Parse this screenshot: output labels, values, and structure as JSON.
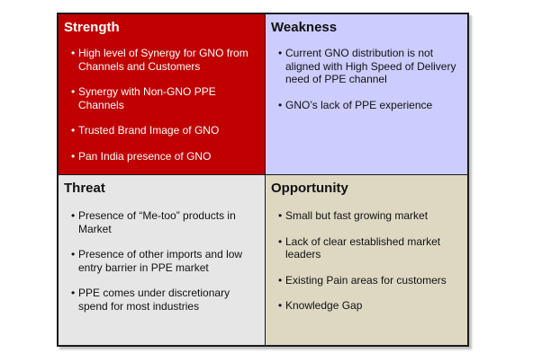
{
  "strength": {
    "title": "Strength",
    "items": [
      "High level of Synergy for GNO from Channels and Customers",
      "Synergy with Non-GNO PPE Channels",
      "Trusted Brand Image of GNO",
      "Pan India presence  of GNO"
    ],
    "color": "#c00000"
  },
  "weakness": {
    "title": "Weakness",
    "items": [
      "Current GNO distribution is not aligned with High Speed of Delivery need of PPE channel",
      "GNO’s lack of PPE experience"
    ],
    "color": "#ccccff"
  },
  "threat": {
    "title": "Threat",
    "items": [
      "Presence of “Me-too” products in Market",
      "Presence of other imports and low entry barrier in PPE market",
      "PPE comes under discretionary spend for most industries"
    ],
    "color": "#e6e6e6"
  },
  "opportunity": {
    "title": "Opportunity",
    "items": [
      "Small but fast growing market",
      "Lack of clear established market leaders",
      "Existing Pain areas for customers",
      "Knowledge Gap"
    ],
    "color": "#ddd8c2"
  }
}
